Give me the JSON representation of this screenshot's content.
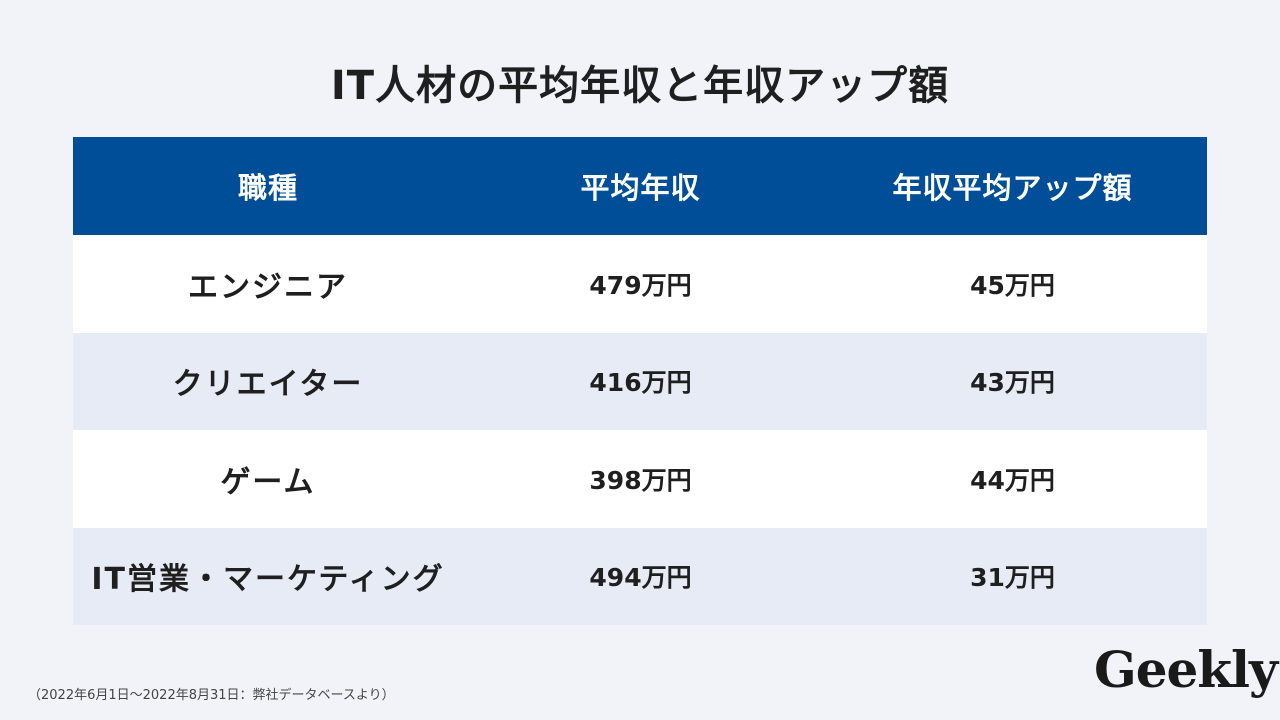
{
  "title": "IT人材の平均年収と年収アップ額",
  "table": {
    "headers": [
      "職種",
      "平均年収",
      "年収平均アップ額"
    ],
    "rows": [
      {
        "job": "エンジニア",
        "avg": "479万円",
        "up": "45万円"
      },
      {
        "job": "クリエイター",
        "avg": "416万円",
        "up": "43万円"
      },
      {
        "job": "ゲーム",
        "avg": "398万円",
        "up": "44万円"
      },
      {
        "job": "IT営業・マーケティング",
        "avg": "494万円",
        "up": "31万円"
      }
    ]
  },
  "footnote": "（2022年6月1日〜2022年8月31日：弊社データベースより）",
  "logo": "Geekly",
  "colors": {
    "header_bg": "#004e98",
    "background": "#f2f3f8",
    "row_alt": "#e7ebf5"
  }
}
